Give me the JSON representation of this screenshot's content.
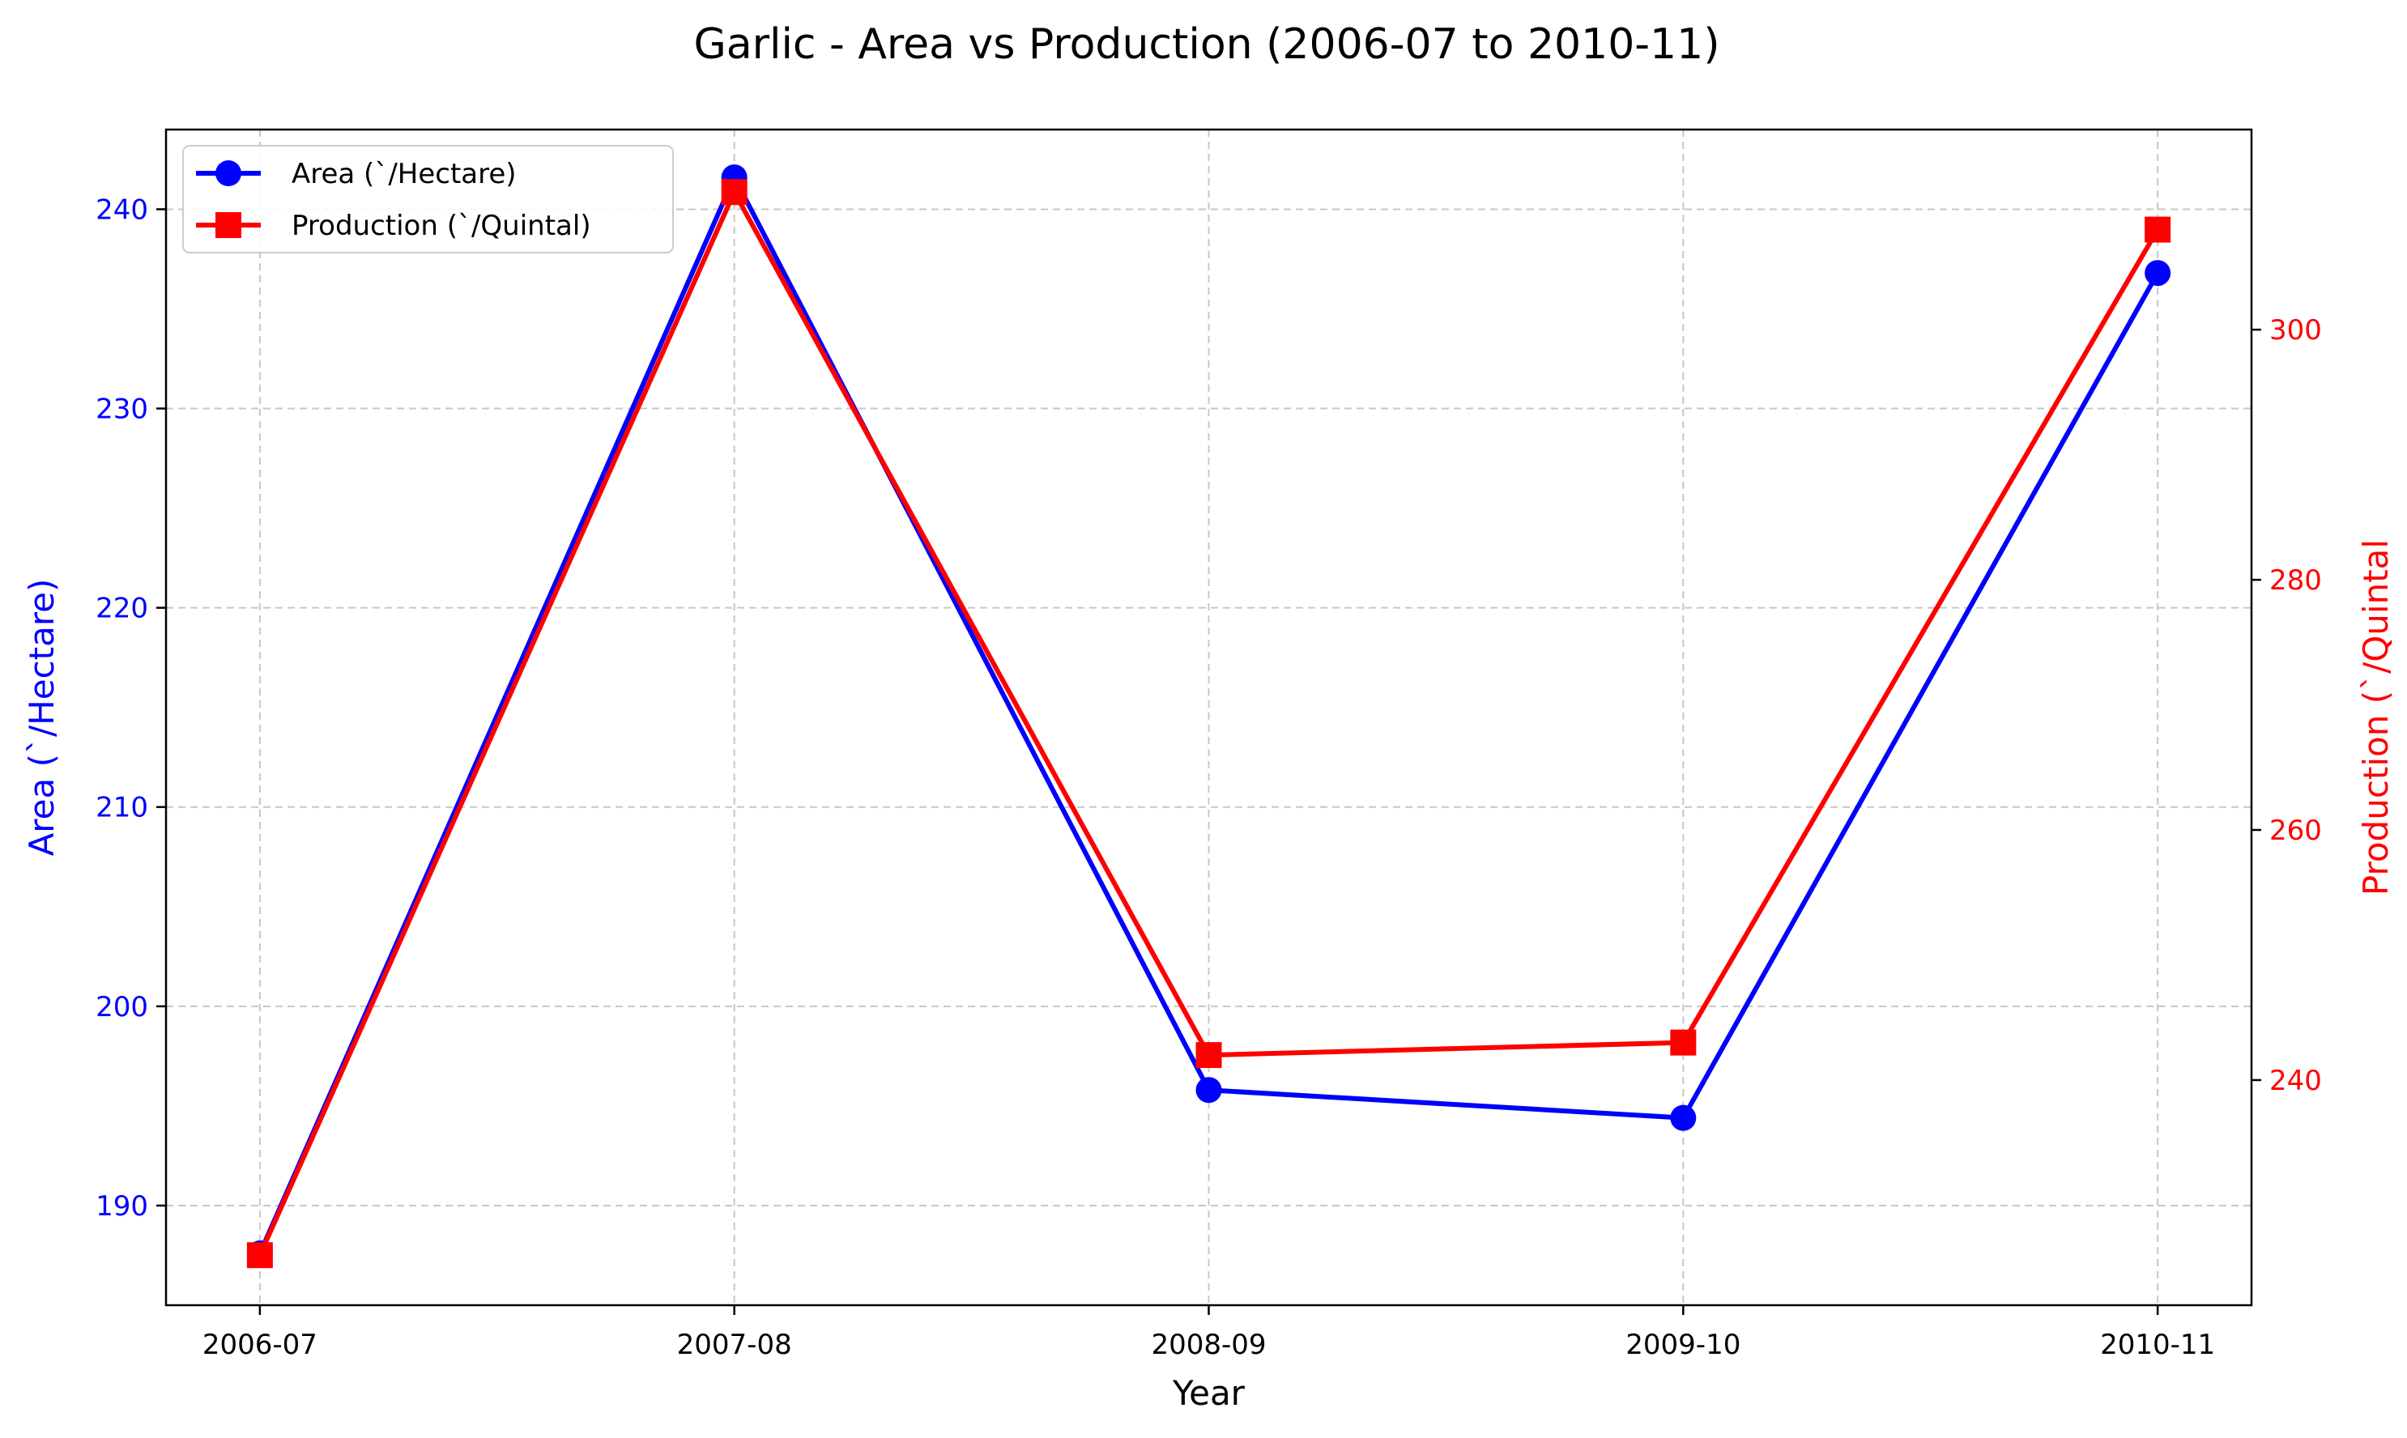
{
  "chart_data": {
    "type": "line",
    "title": "Garlic   - Area vs Production (2006-07 to 2010-11)",
    "xlabel": "Year",
    "ylabel_left": "Area (`/Hectare)",
    "ylabel_right": "Production (`/Quintal",
    "categories": [
      "2006-07",
      "2007-08",
      "2008-09",
      "2009-10",
      "2010-11"
    ],
    "y_left": {
      "lim": [
        185,
        244
      ],
      "ticks": [
        190,
        200,
        210,
        220,
        230,
        240
      ],
      "color": "#0000ff"
    },
    "y_right": {
      "lim": [
        222,
        316
      ],
      "ticks": [
        240,
        260,
        280,
        300
      ],
      "color": "#ff0000"
    },
    "grid": true,
    "legend_position": "upper-left",
    "series": [
      {
        "name": "Area (`/Hectare)",
        "axis": "left",
        "color": "#0000ff",
        "marker": "circle",
        "values": [
          187.6,
          241.6,
          195.8,
          194.4,
          236.8
        ]
      },
      {
        "name": "Production (`/Quintal)",
        "axis": "right",
        "color": "#ff0000",
        "marker": "square",
        "values": [
          226,
          311,
          242,
          243,
          308
        ]
      }
    ]
  }
}
